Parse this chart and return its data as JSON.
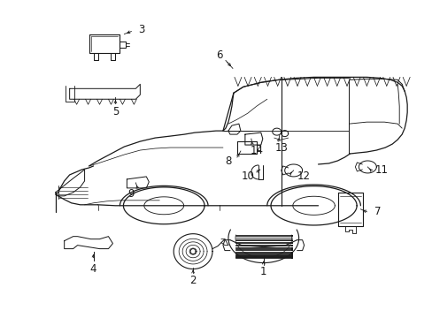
{
  "bg_color": "#ffffff",
  "line_color": "#1a1a1a",
  "label_fontsize": 8.5,
  "figsize": [
    4.89,
    3.6
  ],
  "dpi": 100,
  "car": {
    "body_outline_x": [
      0.155,
      0.16,
      0.165,
      0.17,
      0.178,
      0.19,
      0.205,
      0.22,
      0.238,
      0.255,
      0.27,
      0.285,
      0.3,
      0.31,
      0.318,
      0.325,
      0.332,
      0.34,
      0.35,
      0.362,
      0.375,
      0.388,
      0.4,
      0.415,
      0.432,
      0.45,
      0.468,
      0.488,
      0.508,
      0.528,
      0.548,
      0.568,
      0.59,
      0.612,
      0.632,
      0.652,
      0.672,
      0.692,
      0.712,
      0.732,
      0.75,
      0.765,
      0.778,
      0.79,
      0.8,
      0.808,
      0.815,
      0.82,
      0.823,
      0.825,
      0.826,
      0.826,
      0.825,
      0.823,
      0.82,
      0.815,
      0.808,
      0.8,
      0.79,
      0.778,
      0.765,
      0.75,
      0.732,
      0.712,
      0.692,
      0.672,
      0.652,
      0.63,
      0.608
    ],
    "body_outline_y": [
      0.445,
      0.46,
      0.478,
      0.498,
      0.52,
      0.542,
      0.558,
      0.568,
      0.572,
      0.574,
      0.574,
      0.574,
      0.574,
      0.574,
      0.574,
      0.574,
      0.574,
      0.574,
      0.574,
      0.574,
      0.574,
      0.574,
      0.574,
      0.574,
      0.574,
      0.574,
      0.574,
      0.574,
      0.574,
      0.574,
      0.574,
      0.574,
      0.574,
      0.574,
      0.574,
      0.574,
      0.574,
      0.574,
      0.574,
      0.574,
      0.574,
      0.574,
      0.575,
      0.576,
      0.578,
      0.582,
      0.587,
      0.593,
      0.6,
      0.608,
      0.616,
      0.625,
      0.633,
      0.64,
      0.646,
      0.65,
      0.653,
      0.655,
      0.655,
      0.653,
      0.65,
      0.646,
      0.64,
      0.633,
      0.625,
      0.616,
      0.608,
      0.6,
      0.592
    ]
  }
}
